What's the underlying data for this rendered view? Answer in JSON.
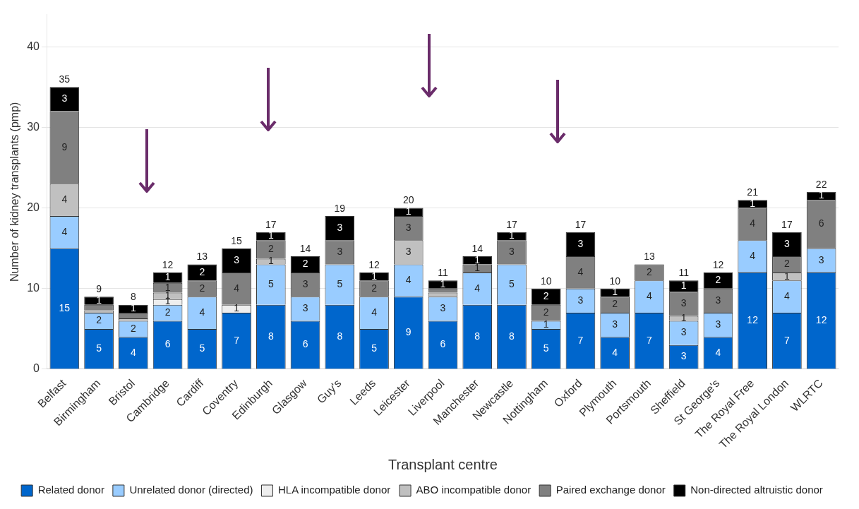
{
  "chart_data": {
    "type": "bar",
    "stacked": true,
    "xlabel": "Transplant centre",
    "ylabel": "Number of kidney transplants (pmp)",
    "categories": [
      "Belfast",
      "Birmingham",
      "Bristol",
      "Cambridge",
      "Cardiff",
      "Coventry",
      "Edinburgh",
      "Glasgow",
      "Guy's",
      "Leeds",
      "Leicester",
      "Liverpool",
      "Manchester",
      "Newcastle",
      "Nottingham",
      "Oxford",
      "Plymouth",
      "Portsmouth",
      "Sheffield",
      "St George's",
      "The Royal Free",
      "The Royal London",
      "WLRTC"
    ],
    "series": [
      {
        "name": "Related donor",
        "color": "#0066cc",
        "values": [
          15,
          5,
          4,
          6,
          5,
          7,
          8,
          6,
          8,
          5,
          9,
          6,
          8,
          8,
          5,
          7,
          4,
          7,
          3,
          4,
          12,
          7,
          12
        ],
        "value_labels": [
          "15",
          "5",
          "4",
          "6",
          "5",
          "7",
          "8",
          "6",
          "8",
          "5",
          "9",
          "6",
          "8",
          "8",
          "5",
          "7",
          "4",
          "7",
          "3",
          "4",
          "12",
          "7",
          "12"
        ]
      },
      {
        "name": "Unrelated donor (directed)",
        "color": "#99ccff",
        "values": [
          4,
          2,
          2,
          2,
          4,
          0,
          5,
          3,
          5,
          4,
          4,
          3,
          4,
          5,
          1,
          3,
          3,
          4,
          3,
          3,
          4,
          4,
          3
        ],
        "value_labels": [
          "4",
          "2",
          "2",
          "2",
          "4",
          null,
          "5",
          "3",
          "5",
          "4",
          "4",
          "3",
          "4",
          "5",
          "1",
          "3",
          "3",
          "4",
          "3",
          "3",
          "4",
          "4",
          "3"
        ]
      },
      {
        "name": "HLA incompatible donor",
        "color": "#eeeeee",
        "values": [
          0,
          0,
          0,
          0.7,
          0,
          1,
          0,
          0,
          0,
          0,
          0,
          0,
          0,
          0,
          0,
          0,
          0,
          0,
          0,
          0,
          0,
          0,
          0
        ],
        "value_labels": [
          null,
          null,
          null,
          "1",
          null,
          "1",
          null,
          null,
          null,
          null,
          null,
          null,
          null,
          null,
          null,
          null,
          null,
          null,
          null,
          null,
          null,
          null,
          null
        ]
      },
      {
        "name": "ABO incompatible donor",
        "color": "#c0c0c0",
        "values": [
          4,
          0.3,
          0.3,
          0.8,
          0,
          0,
          0.7,
          0,
          0,
          0,
          3,
          0.5,
          0,
          0,
          0,
          0,
          0,
          0,
          0.6,
          0,
          0,
          1,
          0
        ],
        "value_labels": [
          "4",
          null,
          null,
          "1",
          null,
          null,
          "1",
          null,
          null,
          null,
          "3",
          null,
          null,
          null,
          null,
          null,
          null,
          null,
          "1",
          null,
          null,
          "1",
          null
        ]
      },
      {
        "name": "Paired exchange donor",
        "color": "#808080",
        "values": [
          9,
          0.7,
          0.7,
          1.2,
          2,
          4,
          2.3,
          3,
          3,
          2,
          3,
          0.5,
          1,
          3,
          2,
          4,
          2,
          2,
          3,
          3,
          4,
          2,
          6
        ],
        "value_labels": [
          "9",
          null,
          null,
          "1",
          "2",
          "4",
          "2",
          "3",
          "3",
          "2",
          "3",
          null,
          "1",
          "3",
          "2",
          "4",
          "2",
          "2",
          "3",
          "3",
          "4",
          "2",
          "6"
        ]
      },
      {
        "name": "Non-directed altruistic donor",
        "color": "#000000",
        "values": [
          3,
          1,
          1,
          1.3,
          2,
          3,
          1,
          2,
          3,
          1,
          1,
          1,
          1,
          1,
          2,
          3,
          1,
          0,
          1.4,
          2,
          1,
          3,
          1
        ],
        "value_labels": [
          "3",
          "1",
          "1",
          "1",
          "2",
          "3",
          "1",
          "2",
          "3",
          "1",
          "1",
          "1",
          "1",
          "1",
          "2",
          "3",
          "1",
          null,
          "1",
          "2",
          "1",
          "3",
          "1"
        ]
      }
    ],
    "totals": [
      "35",
      "9",
      "8",
      "12",
      "13",
      "15",
      "17",
      "14",
      "19",
      "12",
      "20",
      "11",
      "14",
      "17",
      "10",
      "17",
      "10",
      "13",
      "11",
      "12",
      "21",
      "17",
      "22"
    ],
    "ylim": [
      0,
      44
    ],
    "yticks": [
      0,
      10,
      20,
      30,
      40
    ],
    "grid": "y",
    "legend": "bottom"
  }
}
